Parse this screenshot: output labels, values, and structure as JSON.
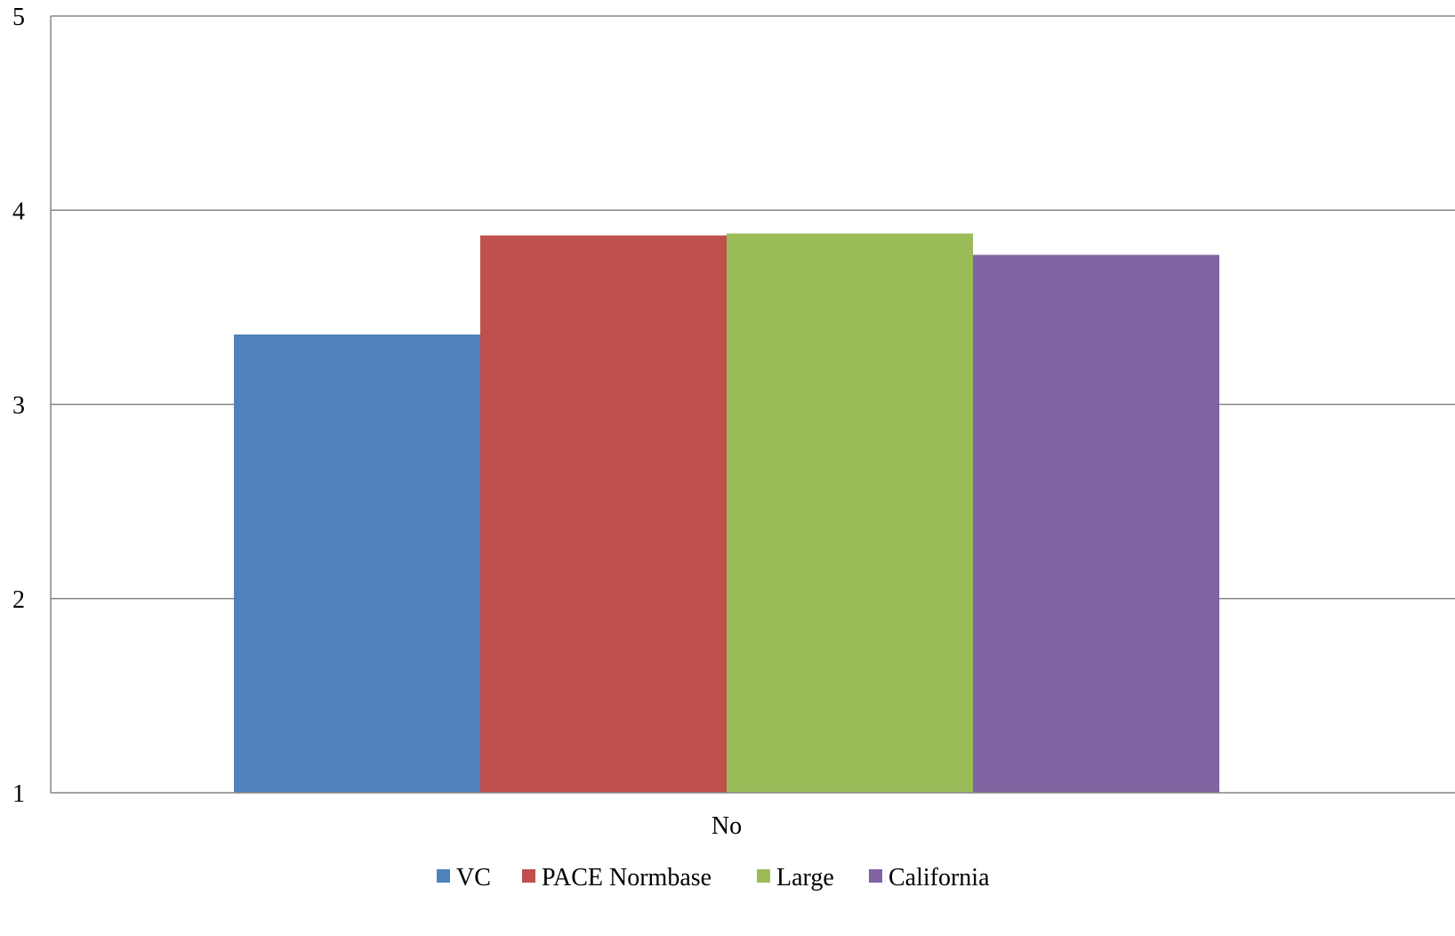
{
  "chart_data": {
    "type": "bar",
    "title": "",
    "xlabel": "",
    "ylabel": "",
    "categories": [
      "No"
    ],
    "ylim": [
      1,
      5
    ],
    "yticks": [
      1,
      2,
      3,
      4,
      5
    ],
    "grid": true,
    "legend_position": "bottom",
    "series": [
      {
        "name": "VC",
        "values": [
          3.36
        ],
        "color": "#4F81BD"
      },
      {
        "name": "PACE Normbase",
        "values": [
          3.87
        ],
        "color": "#C0504D"
      },
      {
        "name": "Large",
        "values": [
          3.88
        ],
        "color": "#9BBB59"
      },
      {
        "name": "California",
        "values": [
          3.77
        ],
        "color": "#8064A2"
      }
    ],
    "axis_color": "#868686",
    "grid_color": "#868686"
  }
}
